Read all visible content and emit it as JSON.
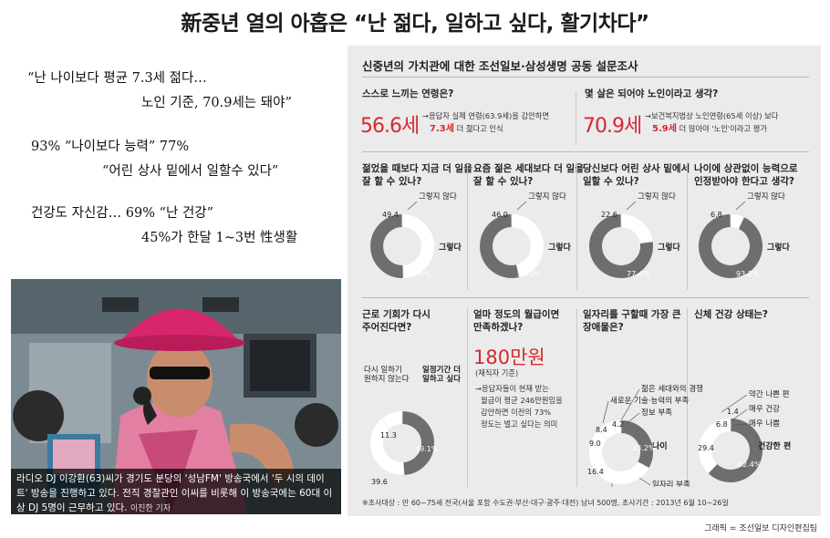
{
  "headline": "新중년 열의 아홉은 “난 젊다, 일하고 싶다, 활기차다”",
  "quotes": [
    {
      "line1": "“난 나이보다 평균 7.3세 젊다…",
      "line2": "노인 기준, 70.9세는 돼야”"
    },
    {
      "line1": "93% “나이보다 능력” 77%",
      "line2": "“어린 상사 밑에서 일할수 있다”"
    },
    {
      "line1": "건강도 자신감… 69% “난 건강”",
      "line2": "45%가 한달 1~3번 性생활"
    }
  ],
  "photo": {
    "caption": "라디오 DJ 이강환(63)씨가 경기도 분당의 '성남FM' 방송국에서 '두 시의 데이트' 방송을 진행하고 있다. 전직 경찰관인 이씨를 비롯해 이 방송국에는 60대 이상 DJ 5명이 근무하고 있다.",
    "credit": "이진한 기자"
  },
  "survey": {
    "title": "신중년의 가치관에 대한 조선일보·삼성생명 공동 설문조사",
    "top": [
      {
        "question": "스스로 느끼는 연령은?",
        "value": "56.6세",
        "note1": "→응답자 실제 연령(63.9세)을 감안하면",
        "note_highlight": "7.3세",
        "note2": "더 젊다고 인식"
      },
      {
        "question": "몇 살은 되어야 노인이라고 생각?",
        "value": "70.9세",
        "note1": "→보건복지법상 노인연령(65세 이상) 보다",
        "note_highlight": "5.9세",
        "note2": "더 많아야 '노인'이라고 평가"
      }
    ],
    "row1": [
      {
        "question_l1": "젊었을 때보다 지금 더 일을",
        "question_l2": "잘 할 수 있나?",
        "yes_label": "그렇다",
        "no_label": "그렇지 않다",
        "yes": 50.6,
        "no": 49.4,
        "yes_text": "50.6%",
        "no_text": "49.4"
      },
      {
        "question_l1": "요즘 젊은 세대보다 더 일을",
        "question_l2": "잘 할 수 있나?",
        "yes_label": "그렇다",
        "no_label": "그렇지 않다",
        "yes": 54.0,
        "no": 46.0,
        "yes_text": "54.0%",
        "no_text": "46.0"
      },
      {
        "question_l1": "당신보다 어린 상사 밑에서",
        "question_l2": "일할 수 있나?",
        "yes_label": "그렇다",
        "no_label": "그렇지 않다",
        "yes": 77.4,
        "no": 22.6,
        "yes_text": "77.4%",
        "no_text": "22.6"
      },
      {
        "question_l1": "나이에 상관없이 능력으로",
        "question_l2": "인정받아야 한다고 생각?",
        "yes_label": "그렇다",
        "no_label": "그렇지 않다",
        "yes": 93.2,
        "no": 6.8,
        "yes_text": "93.2%",
        "no_text": "6.8"
      }
    ],
    "row2": {
      "chance": {
        "question_l1": "근로 기회가 다시",
        "question_l2": "주어진다면?",
        "labels": {
          "no_l1": "다시 일하기",
          "no_l2": "원하지 않는다",
          "some_l1": "일정기간 더",
          "some_l2": "일하고 싶다",
          "life_l1": "평생 일하고",
          "life_l2": "싶다"
        },
        "values": {
          "some": 49.1,
          "life": 39.6,
          "no": 11.3
        },
        "texts": {
          "some": "49.1%",
          "life": "39.6",
          "no": "11.3"
        }
      },
      "salary": {
        "question_l1": "얼마 정도의 월급이면",
        "question_l2": "만족하겠나?",
        "value": "180만원",
        "sub": "(재직자 기준)",
        "note": [
          "→응답자들이 현재 받는",
          "월급이 평균 246만원임을",
          "감안하면 이전의 73%",
          "정도는 벌고 싶다는 의미"
        ]
      },
      "difficulty": {
        "question_l1": "일자리를 구할때 가장 큰",
        "question_l2": "장애물은?",
        "segments": [
          {
            "label": "나이",
            "value": 33.2,
            "text": "33.2%"
          },
          {
            "label": "일자리 부족",
            "value": 28.6,
            "text": "28.6"
          },
          {
            "label": "자신감 부족 등 마음 자세",
            "value": 16.4,
            "text": "16.4"
          },
          {
            "label": "젊은 세대와의 경쟁",
            "value": 9.0,
            "text": "9.0"
          },
          {
            "label": "새로운 기술·능력의 부족",
            "value": 8.4,
            "text": "8.4"
          },
          {
            "label": "정보 부족",
            "value": 4.2,
            "text": "4.2"
          }
        ]
      },
      "health": {
        "question": "신체 건강 상태는?",
        "segments": [
          {
            "label": "건강한 편",
            "value": 62.4,
            "text": "62.4%"
          },
          {
            "label": "약간 나쁜 편",
            "value": 29.4,
            "text": "29.4"
          },
          {
            "label": "매우 건강",
            "value": 6.8,
            "text": "6.8"
          },
          {
            "label": "매우 나쁨",
            "value": 1.4,
            "text": "1.4"
          }
        ]
      }
    },
    "footer": "※조사대상 : 만 60~75세 전국(서울 포함 수도권·부산·대구·광주·대전) 남녀 500명, 조사기간 : 2013년 6월 10~26일"
  },
  "graphic_credit": "그래픽 = 조선일보 디자인편집팀",
  "colors": {
    "red": "#d7282f",
    "gray": "#6d6e70",
    "panel": "#ebebeb"
  }
}
